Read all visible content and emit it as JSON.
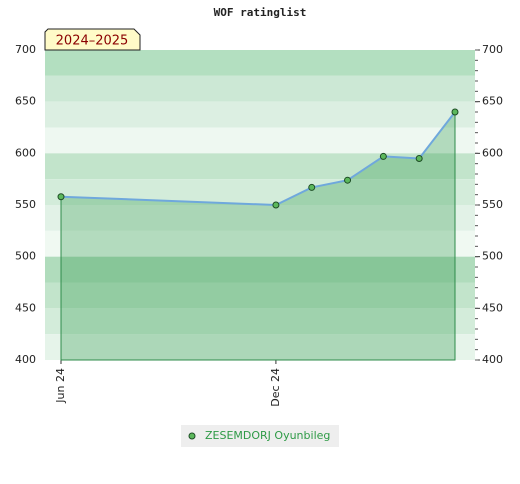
{
  "chart_data": {
    "type": "line",
    "title": "WOF ratinglist",
    "annotation": "2024–2025",
    "x": [
      "2024-06",
      "2024-12",
      "2025-01",
      "2025-02",
      "2025-03",
      "2025-04",
      "2025-05"
    ],
    "series": [
      {
        "name": "ZESEMDORJ Oyunbileg",
        "color": "#5cb85c",
        "values": [
          558,
          550,
          567,
          574,
          597,
          595,
          640
        ]
      }
    ],
    "xlim": [
      "2024-06",
      "2025-05"
    ],
    "xticks": [
      {
        "value": "2024-06",
        "label": "Jun 24"
      },
      {
        "value": "2024-12",
        "label": "Dec 24"
      }
    ],
    "ylim": [
      400,
      700
    ],
    "yticks": [
      400,
      450,
      500,
      550,
      600,
      650,
      700
    ],
    "legend": "bottom"
  }
}
